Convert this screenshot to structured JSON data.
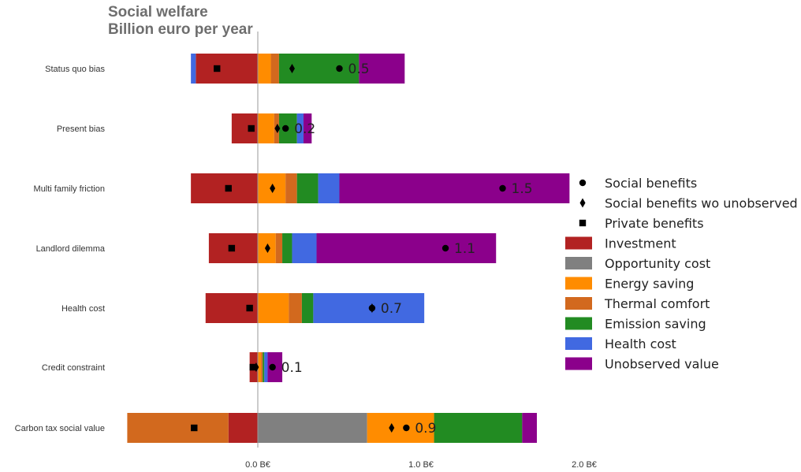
{
  "title": {
    "line1": "Social welfare",
    "line2": "Billion euro per year"
  },
  "chart_data": {
    "type": "bar",
    "orientation": "horizontal",
    "stacked": true,
    "xlim": [
      -0.8,
      2.05
    ],
    "x_ticks": [
      {
        "value": 0.0,
        "label": "0.0 B€"
      },
      {
        "value": 1.0,
        "label": "1.0 B€"
      },
      {
        "value": 2.0,
        "label": "2.0 B€"
      }
    ],
    "grid": false,
    "legend_position": "right",
    "categories": [
      "Status quo bias",
      "Present bias",
      "Multi family friction",
      "Landlord dilemma",
      "Health cost",
      "Credit constraint",
      "Carbon tax social value"
    ],
    "series": [
      {
        "name": "Investment",
        "color": "#b22222",
        "values": [
          -0.38,
          -0.16,
          -0.41,
          -0.3,
          -0.32,
          -0.05,
          -0.18
        ]
      },
      {
        "name": "Opportunity cost",
        "color": "#808080",
        "values": [
          0,
          0,
          0,
          0,
          0,
          0,
          0.67
        ]
      },
      {
        "name": "Energy saving",
        "color": "#ff8c00",
        "values": [
          0.08,
          0.1,
          0.17,
          0.11,
          0.19,
          0.02,
          0.41
        ]
      },
      {
        "name": "Thermal comfort",
        "color": "#d2691e",
        "values": [
          0.05,
          0.03,
          0.07,
          0.04,
          0.08,
          0.01,
          -0.62
        ]
      },
      {
        "name": "Emission saving",
        "color": "#228b22",
        "values": [
          0.49,
          0.11,
          0.13,
          0.06,
          0.07,
          0.01,
          0.54
        ]
      },
      {
        "name": "Health cost",
        "color": "#4169e1",
        "values": [
          -0.03,
          0.04,
          0.13,
          0.15,
          0.68,
          0.02,
          0.0
        ]
      },
      {
        "name": "Unobserved value",
        "color": "#8b008b",
        "values": [
          0.28,
          0.05,
          1.41,
          1.1,
          0.0,
          0.09,
          0.09
        ]
      }
    ],
    "markers": [
      {
        "name": "Social benefits",
        "shape": "circle",
        "values": [
          0.5,
          0.17,
          1.5,
          1.15,
          0.7,
          0.09,
          0.91
        ]
      },
      {
        "name": "Social benefits wo unobserved",
        "shape": "diamond",
        "values": [
          0.21,
          0.12,
          0.09,
          0.06,
          0.7,
          -0.01,
          0.82
        ]
      },
      {
        "name": "Private benefits",
        "shape": "square",
        "values": [
          -0.25,
          -0.04,
          -0.18,
          -0.16,
          -0.05,
          -0.03,
          -0.39
        ]
      }
    ],
    "value_labels": [
      "0.5",
      "0.2",
      "1.5",
      "1.1",
      "0.7",
      "0.1",
      "0.9"
    ],
    "value_label_x": [
      0.5,
      0.17,
      1.5,
      1.15,
      0.7,
      0.09,
      0.91
    ]
  }
}
